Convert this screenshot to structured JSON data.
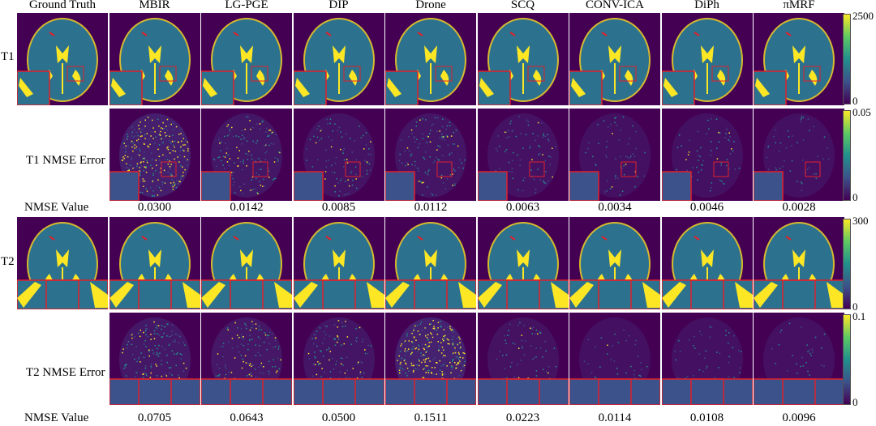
{
  "columns": [
    "Ground Truth",
    "MBIR",
    "LG-PGE",
    "DIP",
    "Drone",
    "SCQ",
    "CONV-ICA",
    "DiPh",
    "πMRF"
  ],
  "rows": {
    "t1": "T1",
    "t1_error": "T1 NMSE Error",
    "nmse_value": "NMSE Value",
    "t2": "T2",
    "t2_error": "T2 NMSE Error"
  },
  "t1_nmse_values": [
    "0.0300",
    "0.0142",
    "0.0085",
    "0.0112",
    "0.0063",
    "0.0034",
    "0.0046",
    "0.0028"
  ],
  "t2_nmse_values": [
    "0.0705",
    "0.0643",
    "0.0500",
    "0.1511",
    "0.0223",
    "0.0114",
    "0.0108",
    "0.0096"
  ],
  "colorbars": {
    "t1": {
      "max": "2500",
      "min": "0"
    },
    "t1_error": {
      "max": "0.05",
      "min": "0"
    },
    "t2": {
      "max": "300",
      "min": "0"
    },
    "t2_error": {
      "max": "0.1",
      "min": "0"
    }
  },
  "colors": {
    "background": "#440154",
    "tissue": "#2c728e",
    "highlight": "#fde725",
    "inset_border": "#e0202a"
  }
}
